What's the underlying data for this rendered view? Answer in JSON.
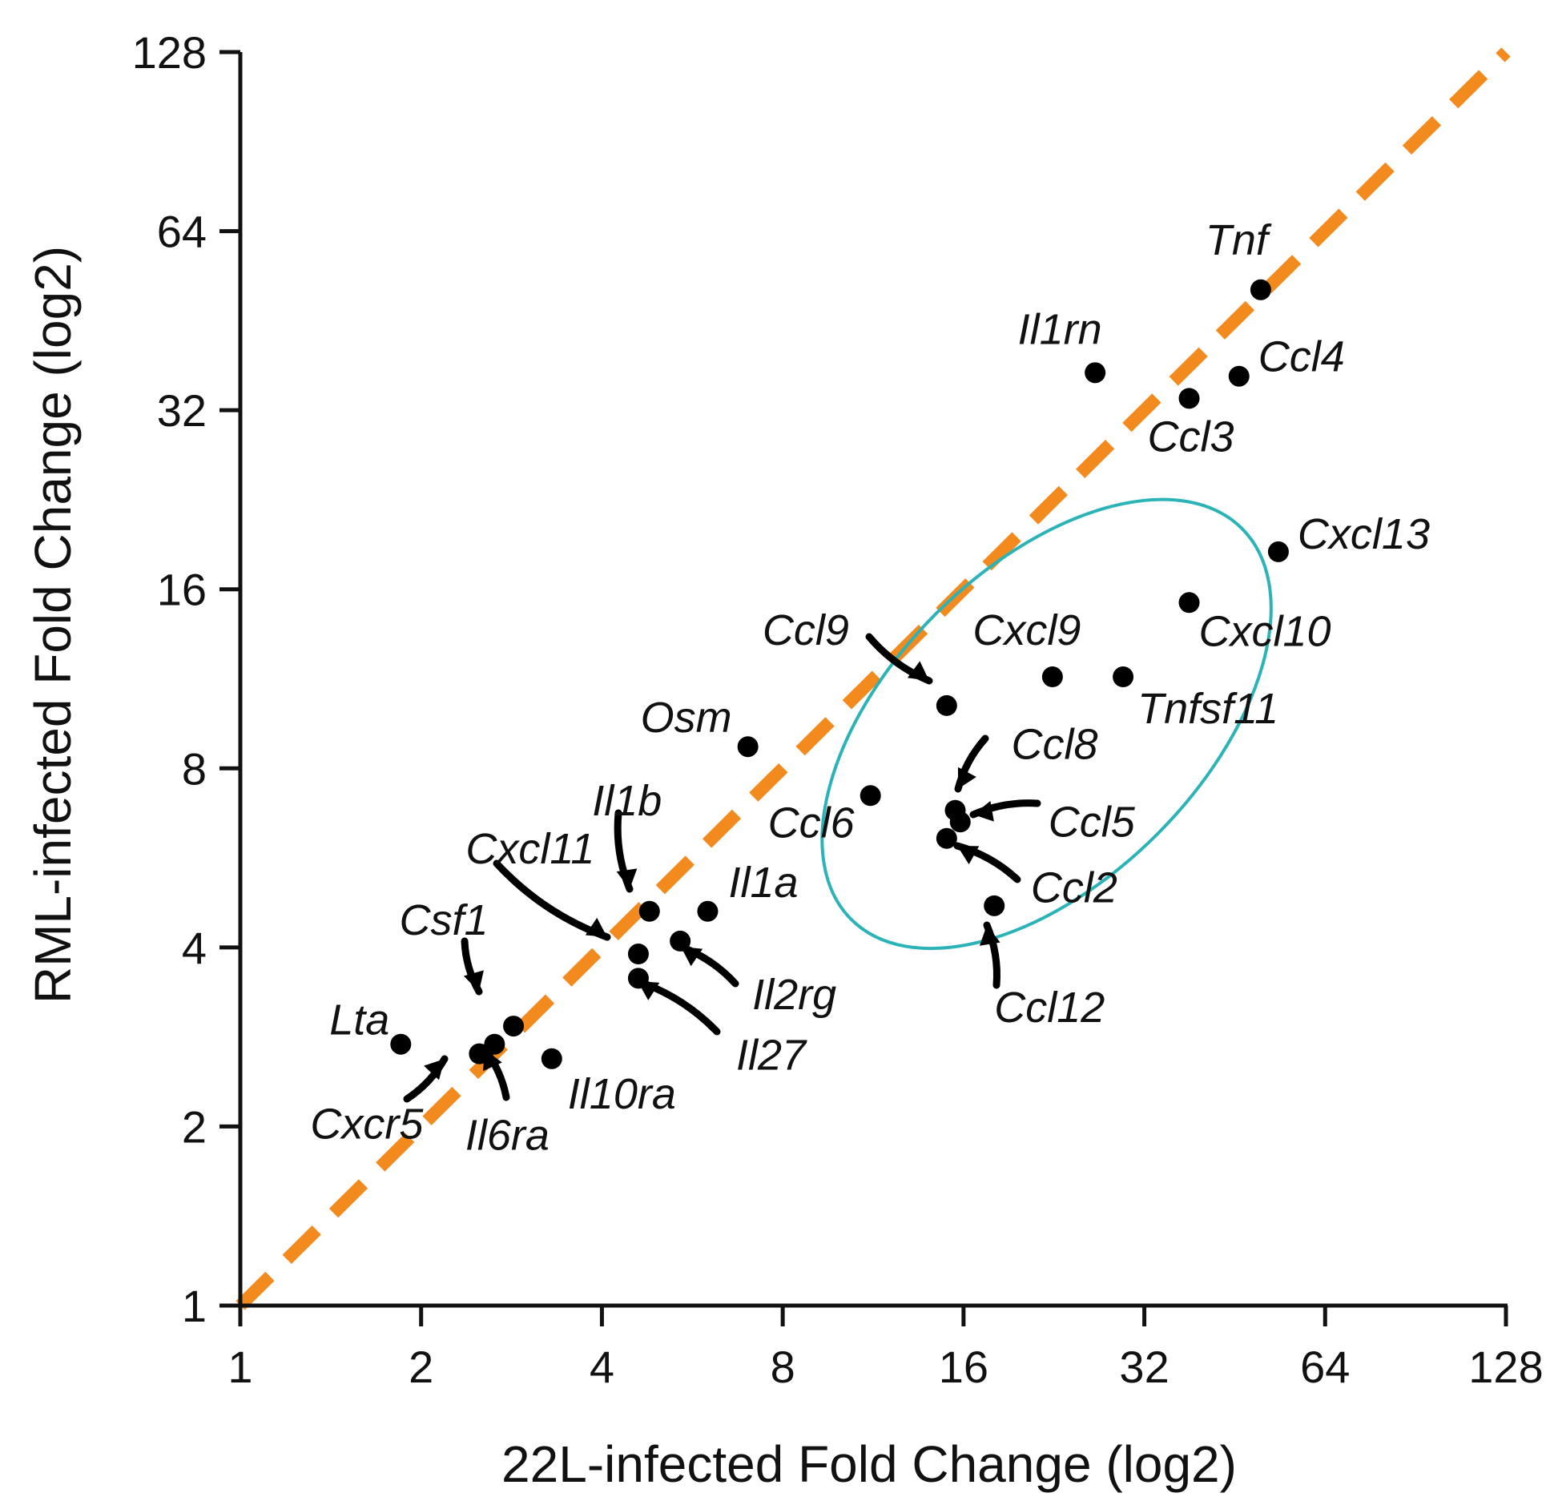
{
  "chart_data": {
    "type": "scatter",
    "title": "",
    "xlabel": "22L-infected Fold Change (log2)",
    "ylabel": "RML-infected Fold Change (log2)",
    "x_scale": "log2",
    "y_scale": "log2",
    "xlim": [
      1,
      128
    ],
    "ylim": [
      1,
      128
    ],
    "x_ticks": [
      "1",
      "2",
      "4",
      "8",
      "16",
      "32",
      "64",
      "128"
    ],
    "y_ticks": [
      "1",
      "2",
      "4",
      "8",
      "16",
      "32",
      "64",
      "128"
    ],
    "reference_line": {
      "type": "identity",
      "from": [
        1,
        1
      ],
      "to": [
        128,
        128
      ],
      "color": "#f28a1e",
      "style": "dashed"
    },
    "highlight_ellipse": {
      "color": "#2bb3b8",
      "center": [
        22,
        9.5
      ],
      "note": "cluster"
    },
    "point_color": "#000000",
    "points": [
      {
        "gene": "Tnf",
        "x": 50,
        "y": 51
      },
      {
        "gene": "Il1rn",
        "x": 26.5,
        "y": 37
      },
      {
        "gene": "Ccl4",
        "x": 46,
        "y": 36.5
      },
      {
        "gene": "Ccl3",
        "x": 38,
        "y": 33.5
      },
      {
        "gene": "Cxcl13",
        "x": 53.5,
        "y": 18.5
      },
      {
        "gene": "Cxcl10",
        "x": 38,
        "y": 15.2
      },
      {
        "gene": "Cxcl9",
        "x": 22.5,
        "y": 11.4
      },
      {
        "gene": "Tnfsf11",
        "x": 29.5,
        "y": 11.4
      },
      {
        "gene": "Ccl9",
        "x": 15,
        "y": 10.2
      },
      {
        "gene": "Osm",
        "x": 7,
        "y": 8.7
      },
      {
        "gene": "Ccl6",
        "x": 11.2,
        "y": 7.2
      },
      {
        "gene": "Ccl8",
        "x": 15.5,
        "y": 6.8
      },
      {
        "gene": "Ccl5",
        "x": 15.8,
        "y": 6.5
      },
      {
        "gene": "Ccl2",
        "x": 15,
        "y": 6.1
      },
      {
        "gene": "Ccl12",
        "x": 18,
        "y": 4.7
      },
      {
        "gene": "Il1b",
        "x": 4.8,
        "y": 4.6
      },
      {
        "gene": "Il1a",
        "x": 6,
        "y": 4.6
      },
      {
        "gene": "Il2rg",
        "x": 5.4,
        "y": 4.1
      },
      {
        "gene": "Cxcl11",
        "x": 4.6,
        "y": 3.9
      },
      {
        "gene": "Il27",
        "x": 4.6,
        "y": 3.55
      },
      {
        "gene": "Csf1",
        "x": 2.85,
        "y": 2.95
      },
      {
        "gene": "Lta",
        "x": 1.85,
        "y": 2.75
      },
      {
        "gene": "Il6ra",
        "x": 2.65,
        "y": 2.75
      },
      {
        "gene": "Cxcr5",
        "x": 2.5,
        "y": 2.65
      },
      {
        "gene": "Il10ra",
        "x": 3.3,
        "y": 2.6
      }
    ]
  }
}
